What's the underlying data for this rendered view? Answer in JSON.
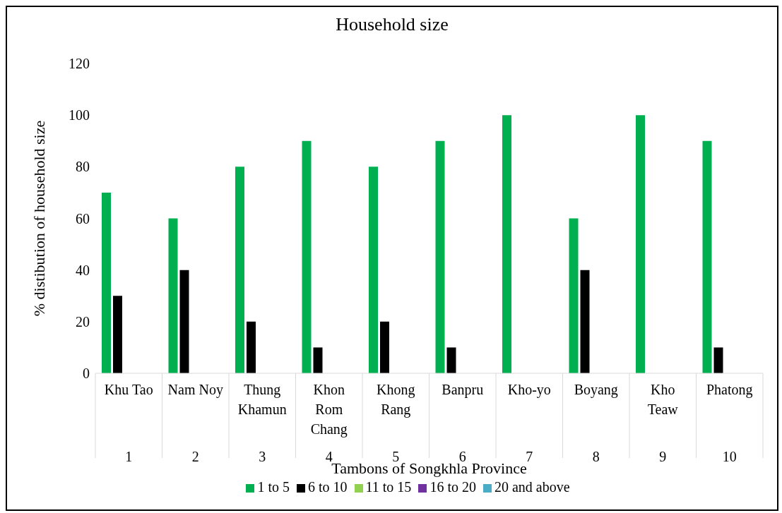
{
  "chart_data": {
    "type": "bar",
    "title": "Household size",
    "xlabel": "Tambons of Songkhla Province",
    "ylabel": "% distibution of household size",
    "categories": [
      "Khu Tao",
      "Nam Noy",
      "Thung Khamun",
      "Khon Rom Chang",
      "Khong Rang",
      "Banpru",
      "Kho-yo",
      "Boyang",
      "Kho Teaw",
      "Phatong"
    ],
    "annotations": [
      "1",
      "2",
      "3",
      "4",
      "5",
      "6",
      "7",
      "8",
      "9",
      "10"
    ],
    "series": [
      {
        "name": "1 to 5",
        "color": "#00b050",
        "values": [
          70,
          60,
          80,
          90,
          80,
          90,
          100,
          60,
          100,
          90
        ]
      },
      {
        "name": "6 to 10",
        "color": "#000000",
        "values": [
          30,
          40,
          20,
          10,
          20,
          10,
          0,
          40,
          0,
          10
        ]
      },
      {
        "name": "11 to 15",
        "color": "#92d050",
        "values": [
          0,
          0,
          0,
          0,
          0,
          0,
          0,
          0,
          0,
          0
        ]
      },
      {
        "name": "16 to 20",
        "color": "#7030a0",
        "values": [
          0,
          0,
          0,
          0,
          0,
          0,
          0,
          0,
          0,
          0
        ]
      },
      {
        "name": "20 and above",
        "color": "#4bacc6",
        "values": [
          0,
          0,
          0,
          0,
          0,
          0,
          0,
          0,
          0,
          0
        ]
      }
    ],
    "ylim": [
      0,
      120
    ],
    "yticks": [
      0,
      20,
      40,
      60,
      80,
      100,
      120
    ],
    "grid": false,
    "legend": "bottom"
  }
}
